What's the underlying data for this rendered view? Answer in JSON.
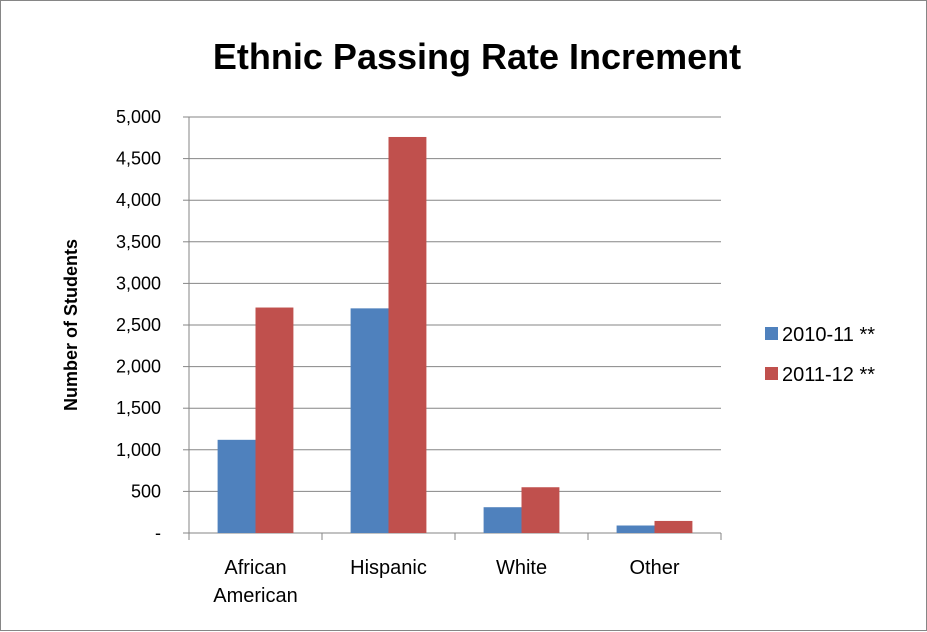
{
  "chart_data": {
    "type": "bar",
    "title": "Ethnic Passing Rate Increment",
    "xlabel": "",
    "ylabel": "Number of Students",
    "categories": [
      [
        "African",
        "American"
      ],
      [
        "Hispanic"
      ],
      [
        "White"
      ],
      [
        "Other"
      ]
    ],
    "series": [
      {
        "name": "2010-11 **",
        "color": "#4F81BD",
        "values": [
          1120,
          2700,
          310,
          90
        ]
      },
      {
        "name": "2011-12 **",
        "color": "#C0504D",
        "values": [
          2710,
          4760,
          550,
          145
        ]
      }
    ],
    "ylim": [
      0,
      5000
    ],
    "yticks": [
      0,
      500,
      1000,
      1500,
      2000,
      2500,
      3000,
      3500,
      4000,
      4500,
      5000
    ],
    "ytick_labels": [
      "-",
      "500",
      "1,000",
      "1,500",
      "2,000",
      "2,500",
      "3,000",
      "3,500",
      "4,000",
      "4,500",
      "5,000"
    ],
    "grid": true,
    "legend": "right",
    "grid_color": "#868686",
    "axis_color": "#868686"
  }
}
